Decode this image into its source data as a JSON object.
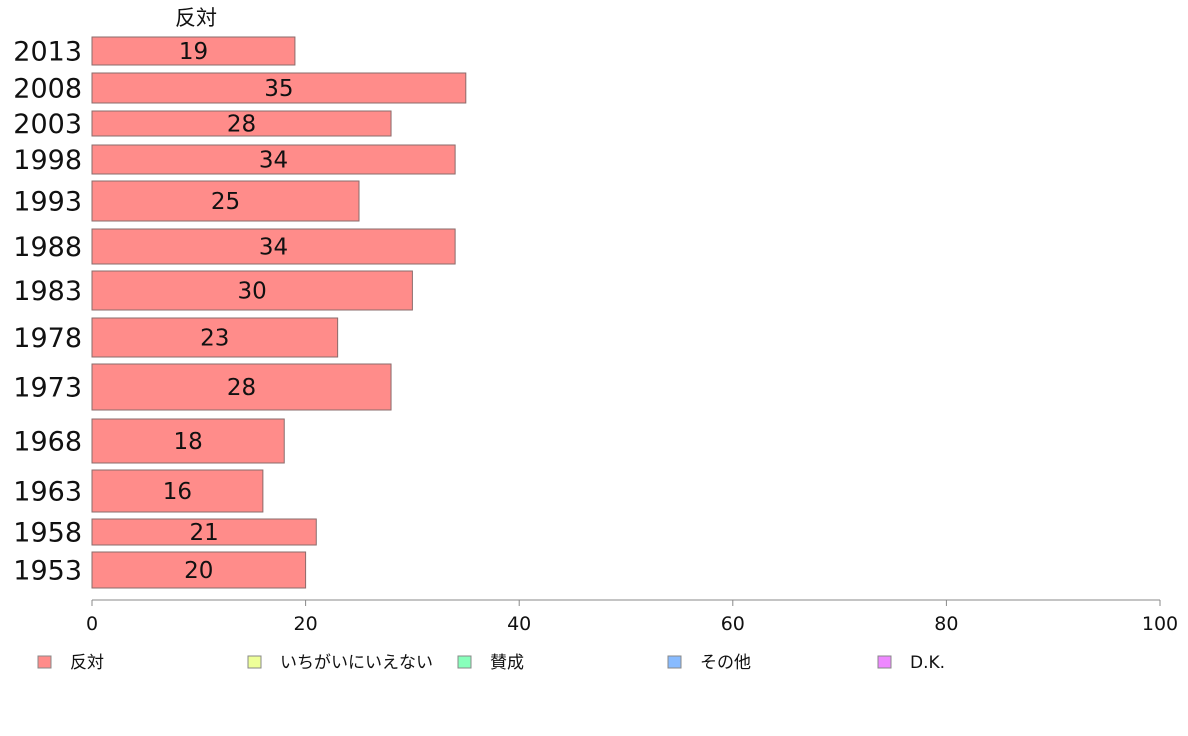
{
  "chart_data": {
    "type": "bar",
    "orientation": "horizontal",
    "categories": [
      "2013",
      "2008",
      "2003",
      "1998",
      "1993",
      "1988",
      "1983",
      "1978",
      "1973",
      "1968",
      "1963",
      "1958",
      "1953"
    ],
    "series": [
      {
        "name": "反対",
        "color": "#ff8c8a",
        "values": [
          19,
          35,
          28,
          34,
          25,
          34,
          30,
          23,
          28,
          18,
          16,
          21,
          20
        ]
      }
    ],
    "xlim": [
      0,
      100
    ],
    "x_ticks": [
      0,
      20,
      40,
      60,
      80,
      100
    ],
    "grid": false,
    "legend_position": "bottom",
    "legend": [
      {
        "label": "反対",
        "color": "#ff8c8a"
      },
      {
        "label": "いちがいにいえない",
        "color": "#eeff99"
      },
      {
        "label": "賛成",
        "color": "#88ffbb"
      },
      {
        "label": "その他",
        "color": "#88bbff"
      },
      {
        "label": "D.K.",
        "color": "#ee88ff"
      }
    ]
  }
}
